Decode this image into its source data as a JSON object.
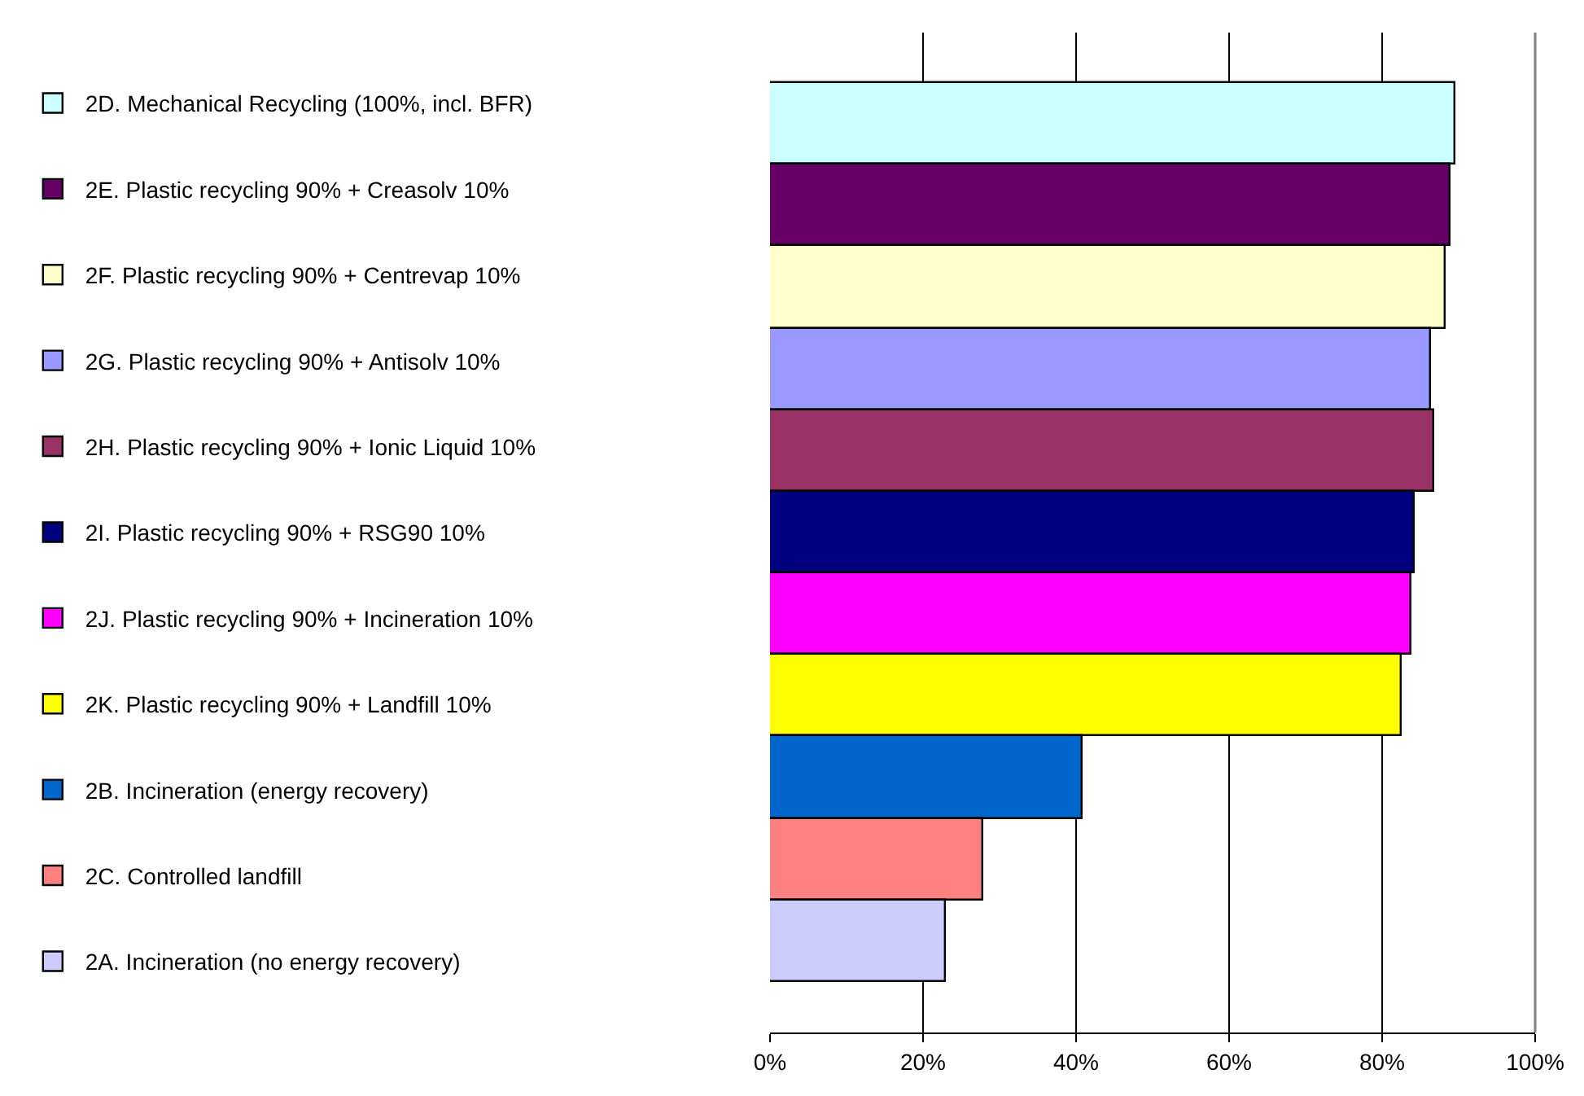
{
  "chart_data": {
    "type": "bar",
    "orientation": "horizontal",
    "categories": [
      null,
      null,
      null,
      null,
      null,
      null,
      null,
      null,
      null,
      null,
      null
    ],
    "series": [
      {
        "name": "2D. Mechanical Recycling (100%, incl. BFR)",
        "color": "#ccffff",
        "values": [
          89.5,
          null,
          null,
          null,
          null,
          null,
          null,
          null,
          null,
          null,
          null
        ]
      },
      {
        "name": "2E. Plastic recycling 90% + Creasolv 10%",
        "color": "#660066",
        "values": [
          null,
          88.9,
          null,
          null,
          null,
          null,
          null,
          null,
          null,
          null,
          null
        ]
      },
      {
        "name": "2F. Plastic recycling 90% + Centrevap 10%",
        "color": "#ffffcc",
        "values": [
          null,
          null,
          88.3,
          null,
          null,
          null,
          null,
          null,
          null,
          null,
          null
        ]
      },
      {
        "name": "2G. Plastic recycling 90% + Antisolv 10%",
        "color": "#9999ff",
        "values": [
          null,
          null,
          null,
          86.4,
          null,
          null,
          null,
          null,
          null,
          null,
          null
        ]
      },
      {
        "name": "2H. Plastic recycling 90% + Ionic Liquid 10%",
        "color": "#993366",
        "values": [
          null,
          null,
          null,
          null,
          86.8,
          null,
          null,
          null,
          null,
          null,
          null
        ]
      },
      {
        "name": "2I. Plastic recycling 90% + RSG90 10%",
        "color": "#000080",
        "values": [
          null,
          null,
          null,
          null,
          null,
          84.2,
          null,
          null,
          null,
          null,
          null
        ]
      },
      {
        "name": "2J. Plastic recycling 90% + Incineration 10%",
        "color": "#ff00ff",
        "values": [
          null,
          null,
          null,
          null,
          null,
          null,
          83.8,
          null,
          null,
          null,
          null
        ]
      },
      {
        "name": "2K. Plastic recycling 90% + Landfill 10%",
        "color": "#ffff00",
        "values": [
          null,
          null,
          null,
          null,
          null,
          null,
          null,
          82.6,
          null,
          null,
          null
        ]
      },
      {
        "name": "2B. Incineration (energy recovery)",
        "color": "#0066cc",
        "values": [
          null,
          null,
          null,
          null,
          null,
          null,
          null,
          null,
          40.9,
          null,
          null
        ]
      },
      {
        "name": "2C. Controlled landfill",
        "color": "#ff8080",
        "values": [
          null,
          null,
          null,
          null,
          null,
          null,
          null,
          null,
          null,
          27.9,
          null
        ]
      },
      {
        "name": "2A. Incineration (no energy recovery)",
        "color": "#ccccff",
        "values": [
          null,
          null,
          null,
          null,
          null,
          null,
          null,
          null,
          null,
          null,
          23.0
        ]
      }
    ],
    "xlim": [
      0,
      100
    ],
    "xticks": [
      {
        "value": 0,
        "label": "0%"
      },
      {
        "value": 20,
        "label": "20%"
      },
      {
        "value": 40,
        "label": "40%"
      },
      {
        "value": 60,
        "label": "60%"
      },
      {
        "value": 80,
        "label": "80%"
      },
      {
        "value": 100,
        "label": "100%"
      }
    ],
    "grid": "x",
    "legend": "left"
  }
}
